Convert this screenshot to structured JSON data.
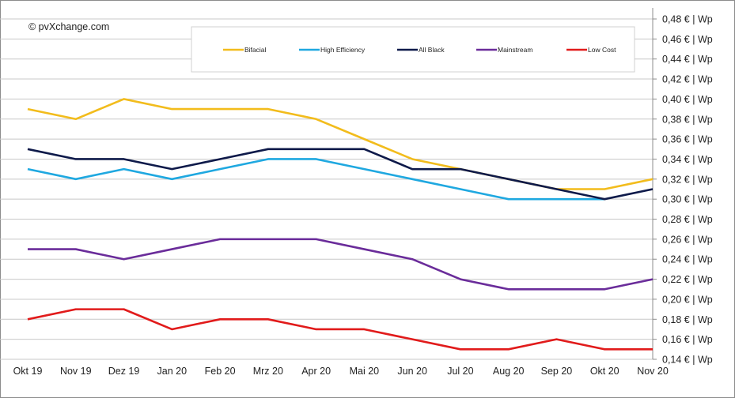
{
  "chart_data": {
    "type": "line",
    "copyright": "© pvXchange.com",
    "categories": [
      "Okt 19",
      "Nov 19",
      "Dez 19",
      "Jan 20",
      "Feb 20",
      "Mrz 20",
      "Apr 20",
      "Mai 20",
      "Jun 20",
      "Jul 20",
      "Aug 20",
      "Sep 20",
      "Okt 20",
      "Nov 20"
    ],
    "ylim": [
      0.14,
      0.48
    ],
    "ystep": 0.02,
    "y_tick_labels": [
      "0,14 € | Wp",
      "0,16 € | Wp",
      "0,18 € | Wp",
      "0,20 € | Wp",
      "0,22 € | Wp",
      "0,24 € | Wp",
      "0,26 € | Wp",
      "0,28 € | Wp",
      "0,30 € | Wp",
      "0,32 € | Wp",
      "0,34 € | Wp",
      "0,36 € | Wp",
      "0,38 € | Wp",
      "0,40 € | Wp",
      "0,42 € | Wp",
      "0,44 € | Wp",
      "0,46 € | Wp",
      "0,48 € | Wp"
    ],
    "yaxis_position": "right",
    "grid": true,
    "legend_position": "top",
    "series": [
      {
        "name": "Bifacial",
        "color": "#f2bc1c",
        "values": [
          0.39,
          0.38,
          0.4,
          0.39,
          0.39,
          0.39,
          0.38,
          0.36,
          0.34,
          0.33,
          0.32,
          0.31,
          0.31,
          0.32
        ]
      },
      {
        "name": "High Efficiency",
        "color": "#1fa8e0",
        "values": [
          0.33,
          0.32,
          0.33,
          0.32,
          0.33,
          0.34,
          0.34,
          0.33,
          0.32,
          0.31,
          0.3,
          0.3,
          0.3,
          null
        ]
      },
      {
        "name": "All Black",
        "color": "#0e1a4a",
        "values": [
          0.35,
          0.34,
          0.34,
          0.33,
          0.34,
          0.35,
          0.35,
          0.35,
          0.33,
          0.33,
          0.32,
          0.31,
          0.3,
          0.31
        ]
      },
      {
        "name": "Mainstream",
        "color": "#6a2c9a",
        "values": [
          0.25,
          0.25,
          0.24,
          0.25,
          0.26,
          0.26,
          0.26,
          0.25,
          0.24,
          0.22,
          0.21,
          0.21,
          0.21,
          0.22
        ]
      },
      {
        "name": "Low Cost",
        "color": "#e11b1b",
        "values": [
          0.18,
          0.19,
          0.19,
          0.17,
          0.18,
          0.18,
          0.17,
          0.17,
          0.16,
          0.15,
          0.15,
          0.16,
          0.15,
          0.15
        ]
      }
    ]
  }
}
